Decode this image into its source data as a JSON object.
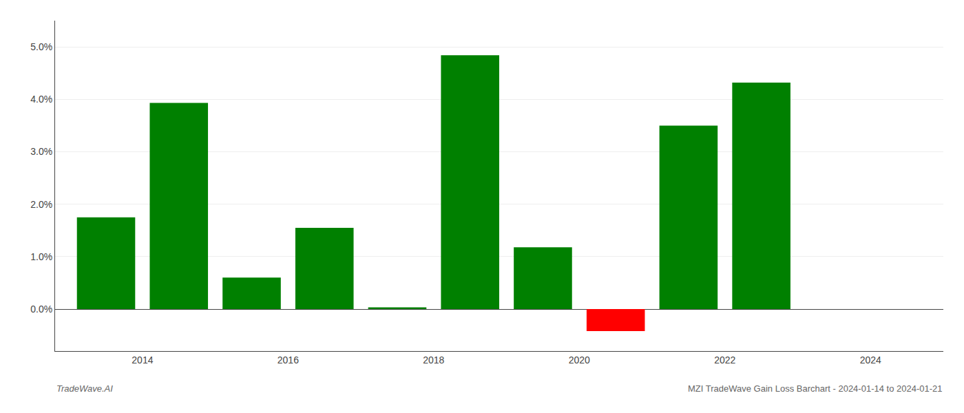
{
  "chart_data": {
    "type": "bar",
    "x": [
      2013.5,
      2014.5,
      2015.5,
      2016.5,
      2017.5,
      2018.5,
      2019.5,
      2020.5,
      2021.5,
      2022.5
    ],
    "values": [
      0.0175,
      0.0393,
      0.006,
      0.0155,
      0.00035,
      0.0484,
      0.0118,
      -0.0042,
      0.035,
      0.0432
    ],
    "colors": [
      "#008000",
      "#008000",
      "#008000",
      "#008000",
      "#008000",
      "#008000",
      "#008000",
      "#ff0000",
      "#008000",
      "#008000"
    ],
    "xlim": [
      2012.8,
      2025.0
    ],
    "xticks": [
      2014,
      2016,
      2018,
      2020,
      2022,
      2024
    ],
    "ylim": [
      -0.008,
      0.055
    ],
    "yticks": [
      {
        "value": 0.0,
        "label": "0.0%"
      },
      {
        "value": 0.01,
        "label": "1.0%"
      },
      {
        "value": 0.02,
        "label": "2.0%"
      },
      {
        "value": 0.03,
        "label": "3.0%"
      },
      {
        "value": 0.04,
        "label": "4.0%"
      },
      {
        "value": 0.05,
        "label": "5.0%"
      }
    ],
    "grid": true,
    "annotations": [
      "TradeWave.AI",
      "MZI TradeWave Gain Loss Barchart - 2024-01-14 to 2024-01-21"
    ]
  }
}
